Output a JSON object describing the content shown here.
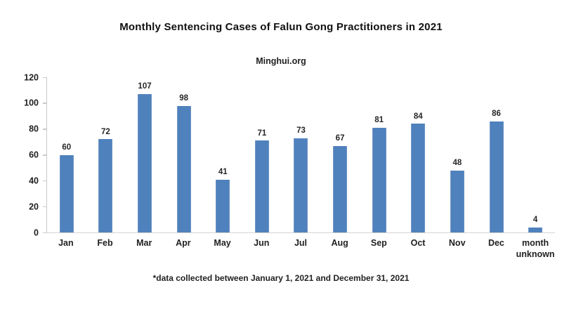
{
  "colors": {
    "bar": "#4f81bd",
    "axis": "#c9c9c9",
    "text": "#1f1f1f"
  },
  "chart_data": {
    "type": "bar",
    "title": "Monthly Sentencing Cases of Falun Gong Practitioners in 2021",
    "subtitle": "Minghui.org",
    "categories": [
      "Jan",
      "Feb",
      "Mar",
      "Apr",
      "May",
      "Jun",
      "Jul",
      "Aug",
      "Sep",
      "Oct",
      "Nov",
      "Dec",
      "month unknown"
    ],
    "values": [
      60,
      72,
      107,
      98,
      41,
      71,
      73,
      67,
      81,
      84,
      48,
      86,
      4
    ],
    "xlabel": "",
    "ylabel": "",
    "ylim": [
      0,
      120
    ],
    "yticks": [
      0,
      20,
      40,
      60,
      80,
      100,
      120
    ],
    "grid": false,
    "legend": false,
    "data_labels": true,
    "annotation": "*data collected between January 1, 2021 and December 31, 2021"
  }
}
